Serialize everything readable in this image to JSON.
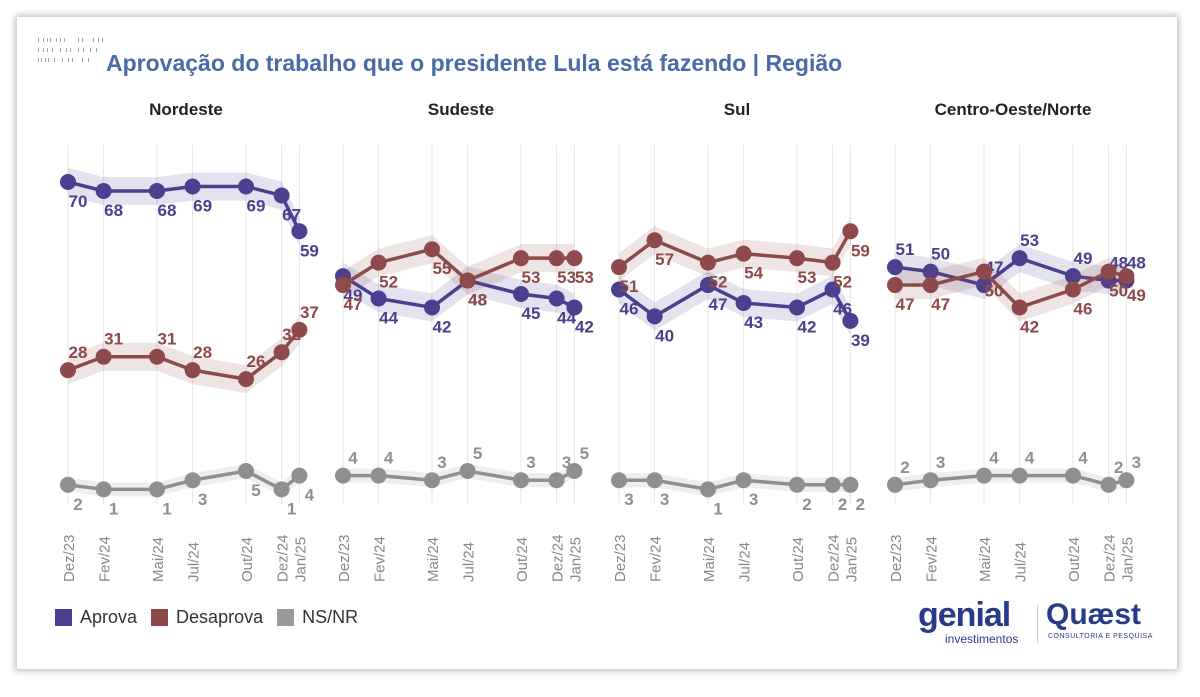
{
  "title": "Aprovação do trabalho que o presidente Lula está fazendo | Região",
  "legend": [
    {
      "label": "Aprova",
      "color": "#4b3f8f"
    },
    {
      "label": "Desaprova",
      "color": "#8e4a4a"
    },
    {
      "label": "NS/NR",
      "color": "#9a9a9a"
    }
  ],
  "logos": {
    "genial": "genial",
    "genial_sub": "investimentos",
    "quaest": "Quæst",
    "quaest_sub": "CONSULTORIA E PESQUISA"
  },
  "chart_data": [
    {
      "type": "line",
      "title": "Nordeste",
      "x": [
        "Dez/23",
        "Fev/24",
        "Mai/24",
        "Jul/24",
        "Out/24",
        "Dez/24",
        "Jan/25"
      ],
      "series": [
        {
          "name": "Aprova",
          "values": [
            70,
            68,
            68,
            69,
            69,
            67,
            59
          ]
        },
        {
          "name": "Desaprova",
          "values": [
            28,
            31,
            31,
            28,
            26,
            32,
            37
          ]
        },
        {
          "name": "NS/NR",
          "values": [
            2,
            1,
            1,
            3,
            5,
            1,
            4
          ]
        }
      ]
    },
    {
      "type": "line",
      "title": "Sudeste",
      "x": [
        "Dez/23",
        "Fev/24",
        "Mai/24",
        "Jul/24",
        "Out/24",
        "Dez/24",
        "Jan/25"
      ],
      "series": [
        {
          "name": "Aprova",
          "values": [
            49,
            44,
            42,
            48,
            45,
            44,
            42
          ]
        },
        {
          "name": "Desaprova",
          "values": [
            47,
            52,
            55,
            48,
            53,
            53,
            53
          ]
        },
        {
          "name": "NS/NR",
          "values": [
            4,
            4,
            3,
            5,
            3,
            3,
            5
          ]
        }
      ]
    },
    {
      "type": "line",
      "title": "Sul",
      "x": [
        "Dez/23",
        "Fev/24",
        "Mai/24",
        "Jul/24",
        "Out/24",
        "Dez/24",
        "Jan/25"
      ],
      "series": [
        {
          "name": "Aprova",
          "values": [
            46,
            40,
            47,
            43,
            42,
            46,
            39
          ]
        },
        {
          "name": "Desaprova",
          "values": [
            51,
            57,
            52,
            54,
            53,
            52,
            59
          ]
        },
        {
          "name": "NS/NR",
          "values": [
            3,
            3,
            1,
            3,
            2,
            2,
            2
          ]
        }
      ]
    },
    {
      "type": "line",
      "title": "Centro-Oeste/Norte",
      "x": [
        "Dez/23",
        "Fev/24",
        "Mai/24",
        "Jul/24",
        "Out/24",
        "Dez/24",
        "Jan/25"
      ],
      "series": [
        {
          "name": "Aprova",
          "values": [
            51,
            50,
            47,
            53,
            49,
            48,
            48
          ]
        },
        {
          "name": "Desaprova",
          "values": [
            47,
            47,
            50,
            42,
            46,
            50,
            49
          ]
        },
        {
          "name": "NS/NR",
          "values": [
            2,
            3,
            4,
            4,
            4,
            2,
            3
          ]
        }
      ]
    }
  ]
}
